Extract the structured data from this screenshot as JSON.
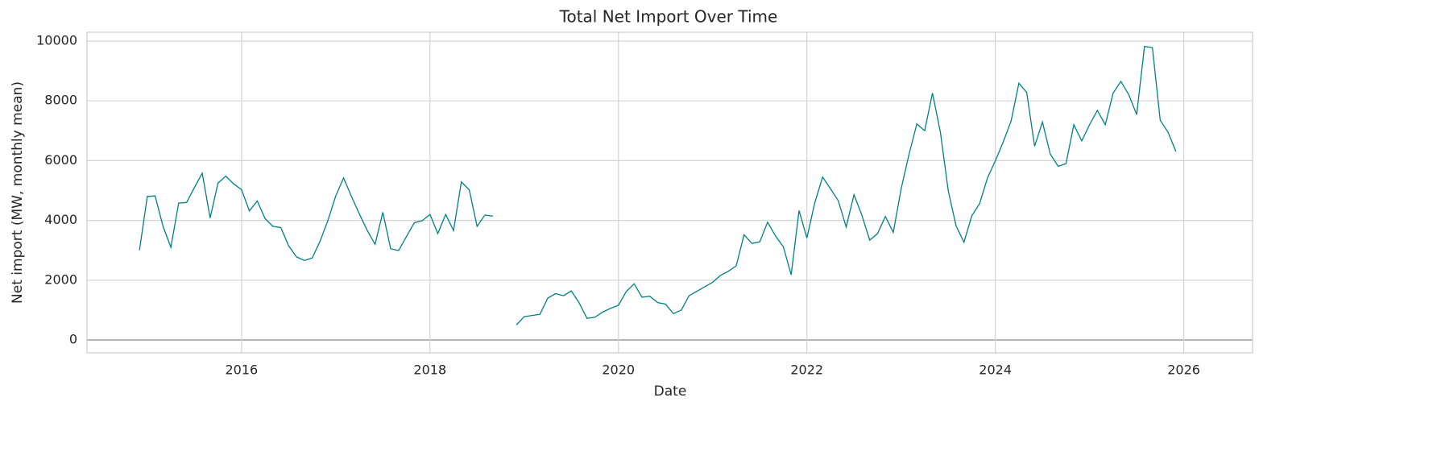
{
  "chart_data": {
    "type": "line",
    "title": "Total Net Import Over Time",
    "x_label": "Date",
    "y_label": "Net import (MW, monthly mean)",
    "x": [
      2014.917,
      2015,
      2015.083,
      2015.167,
      2015.25,
      2015.333,
      2015.417,
      2015.5,
      2015.583,
      2015.667,
      2015.75,
      2015.833,
      2015.917,
      2016,
      2016.083,
      2016.167,
      2016.25,
      2016.333,
      2016.417,
      2016.5,
      2016.583,
      2016.667,
      2016.75,
      2016.833,
      2016.917,
      2017,
      2017.083,
      2017.167,
      2017.25,
      2017.333,
      2017.417,
      2017.5,
      2017.583,
      2017.667,
      2017.75,
      2017.833,
      2017.917,
      2018,
      2018.083,
      2018.167,
      2018.25,
      2018.333,
      2018.417,
      2018.5,
      2018.583,
      2018.667,
      2018.75,
      2018.917,
      2019,
      2019.083,
      2019.167,
      2019.25,
      2019.333,
      2019.417,
      2019.5,
      2019.583,
      2019.667,
      2019.75,
      2019.833,
      2019.917,
      2020,
      2020.083,
      2020.167,
      2020.25,
      2020.333,
      2020.417,
      2020.5,
      2020.583,
      2020.667,
      2020.75,
      2020.833,
      2020.917,
      2021,
      2021.083,
      2021.167,
      2021.25,
      2021.333,
      2021.417,
      2021.5,
      2021.583,
      2021.667,
      2021.75,
      2021.833,
      2021.917,
      2022,
      2022.083,
      2022.167,
      2022.25,
      2022.333,
      2022.417,
      2022.5,
      2022.583,
      2022.667,
      2022.75,
      2022.833,
      2022.917,
      2023,
      2023.083,
      2023.167,
      2023.25,
      2023.333,
      2023.417,
      2023.5,
      2023.583,
      2023.667,
      2023.75,
      2023.833,
      2023.917,
      2024,
      2024.083,
      2024.167,
      2024.25,
      2024.333,
      2024.417,
      2024.5,
      2024.583,
      2024.667,
      2024.75,
      2024.833,
      2024.917,
      2025,
      2025.083,
      2025.167,
      2025.25,
      2025.333,
      2025.417,
      2025.5,
      2025.583,
      2025.667,
      2025.75,
      2025.833,
      2025.917
    ],
    "series": [
      {
        "name": "Total net import",
        "color": "#008080",
        "values": [
          3000,
          4800,
          4820,
          3800,
          3100,
          4580,
          4600,
          5100,
          5580,
          4080,
          5250,
          5480,
          5220,
          5030,
          4320,
          4650,
          4060,
          3800,
          3760,
          3150,
          2780,
          2660,
          2740,
          3300,
          4000,
          4820,
          5420,
          4800,
          4220,
          3670,
          3200,
          4270,
          3050,
          2990,
          3460,
          3920,
          3990,
          4200,
          3560,
          4200,
          3660,
          5290,
          5020,
          3800,
          4180,
          4140,
          null,
          500,
          780,
          820,
          860,
          1400,
          1550,
          1480,
          1640,
          1240,
          720,
          760,
          930,
          1060,
          1160,
          1620,
          1880,
          1430,
          1460,
          1250,
          1200,
          880,
          1000,
          1480,
          1630,
          1780,
          1930,
          2160,
          2300,
          2480,
          3520,
          3230,
          3280,
          3940,
          3480,
          3120,
          2180,
          4330,
          3410,
          4580,
          5450,
          5060,
          4660,
          3780,
          4860,
          4180,
          3340,
          3560,
          4130,
          3600,
          5050,
          6200,
          7230,
          7000,
          8260,
          6950,
          5000,
          3820,
          3270,
          4150,
          4560,
          5420,
          5990,
          6620,
          7320,
          8590,
          8280,
          6480,
          7290,
          6220,
          5810,
          5900,
          7200,
          6660,
          7200,
          7680,
          7200,
          8260,
          8650,
          8200,
          7540,
          9820,
          9780,
          7350,
          6950,
          6300
        ]
      }
    ],
    "xlim": [
      2014.36,
      2026.73
    ],
    "xticks": [
      2016,
      2018,
      2020,
      2022,
      2024,
      2026
    ],
    "ylim": [
      -431,
      10296
    ],
    "yticks": [
      0,
      2000,
      4000,
      6000,
      8000,
      10000
    ],
    "grid": true
  }
}
